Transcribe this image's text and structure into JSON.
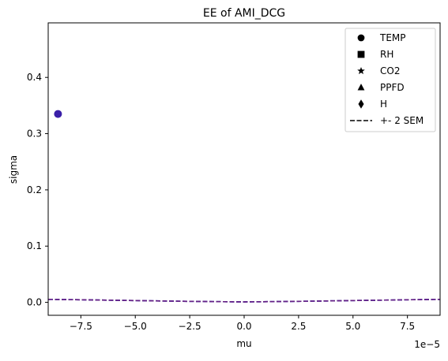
{
  "chart_data": {
    "type": "scatter",
    "title": "EE of AMI_DCG",
    "xlabel": "mu",
    "ylabel": "sigma",
    "x_offset_label": "1e−5",
    "xlim": [
      -9e-05,
      9e-05
    ],
    "ylim": [
      -0.023,
      0.497
    ],
    "xticks": [
      -7.5e-05,
      -5e-05,
      -2.5e-05,
      0.0,
      2.5e-05,
      5e-05,
      7.5e-05
    ],
    "xtick_labels": [
      "−7.5",
      "−5.0",
      "−2.5",
      "0.0",
      "2.5",
      "5.0",
      "7.5"
    ],
    "yticks": [
      0.0,
      0.1,
      0.2,
      0.3,
      0.4
    ],
    "ytick_labels": [
      "0.0",
      "0.1",
      "0.2",
      "0.3",
      "0.4"
    ],
    "grid": false,
    "legend_position": "top-right",
    "legend": [
      {
        "label": "TEMP",
        "marker": "circle"
      },
      {
        "label": "RH",
        "marker": "square"
      },
      {
        "label": "CO2",
        "marker": "star"
      },
      {
        "label": "PPFD",
        "marker": "triangle"
      },
      {
        "label": "H",
        "marker": "diamond"
      },
      {
        "label": "+- 2 SEM",
        "marker": "dashed-line"
      }
    ],
    "points": [
      {
        "x": -8.55e-05,
        "y": 0.335,
        "marker": "circle",
        "color": "#3a1fa8"
      }
    ],
    "sem_line": {
      "x": [
        -9e-05,
        -7.5e-05,
        -5e-05,
        -2.5e-05,
        0.0,
        2.5e-05,
        5e-05,
        7.5e-05,
        9e-05
      ],
      "y": [
        0.0053,
        0.0046,
        0.0032,
        0.0018,
        0.0008,
        0.0018,
        0.0032,
        0.0046,
        0.0053
      ],
      "colors": [
        "#1f2bb4",
        "#3a1fa8",
        "#6a2080"
      ]
    }
  }
}
